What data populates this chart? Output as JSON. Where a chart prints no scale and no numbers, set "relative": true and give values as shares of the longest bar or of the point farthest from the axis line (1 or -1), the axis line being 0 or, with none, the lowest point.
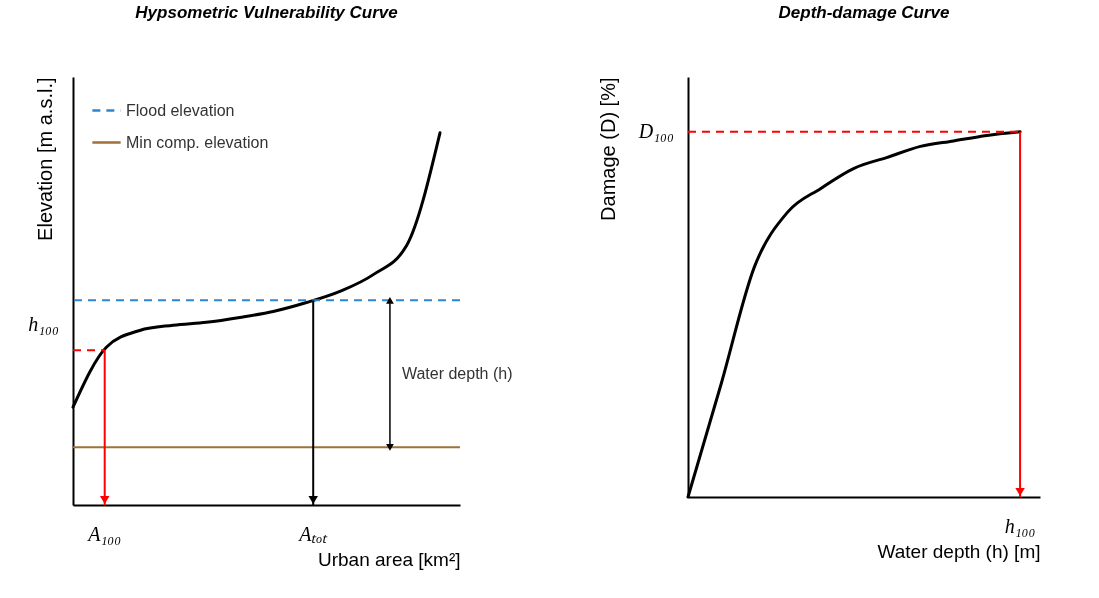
{
  "chart_data": [
    {
      "type": "line",
      "title": "Hypsometric Vulnerability Curve",
      "xlabel": "Urban  area [km²]",
      "ylabel": "Elevation [m a.s.l.]",
      "relative": true,
      "categories": [
        null,
        null,
        null,
        null,
        null,
        null,
        null,
        null,
        null,
        null,
        null,
        null
      ],
      "series": [
        {
          "color": "#000000",
          "values": [
            0.263,
            0.424,
            0.469,
            0.483,
            0.491,
            0.504,
            0.52,
            0.544,
            0.574,
            0.619,
            0.697,
            1
          ]
        }
      ],
      "ref_lines": [
        {
          "axis": "y",
          "value": 0.55,
          "label": "Flood elevation",
          "color": "#2e86d1",
          "line_style": "dashed"
        },
        {
          "axis": "y",
          "value": 0.155,
          "label": "Min comp. elevation",
          "color": "#a0703a",
          "line_style": "solid"
        },
        {
          "axis": "y",
          "value": 0.416,
          "label": null,
          "color": "#ff0000",
          "line_style": "dashed"
        }
      ],
      "annotations": [
        "h₁₀₀",
        "A₁₀₀",
        "Aₜₒₜ",
        "Water depth (h)"
      ]
    },
    {
      "type": "line",
      "title": "Depth-damage Curve",
      "xlabel": "Water depth  (h) [m]",
      "ylabel": "Damage  (D) [%]",
      "relative": true,
      "categories": [
        null,
        null,
        null,
        null,
        null,
        null,
        null,
        null,
        null,
        null,
        null
      ],
      "series": [
        {
          "color": "#000000",
          "values": [
            0,
            0.31,
            0.63,
            0.78,
            0.845,
            0.9,
            0.93,
            0.96,
            0.975,
            0.99,
            1
          ]
        }
      ],
      "ref_lines": [
        {
          "axis": "y",
          "value": 1,
          "label": null,
          "color": "#ff0000",
          "line_style": "dashed"
        }
      ],
      "annotations": [
        "D₁₀₀",
        "h₁₀₀"
      ]
    }
  ]
}
